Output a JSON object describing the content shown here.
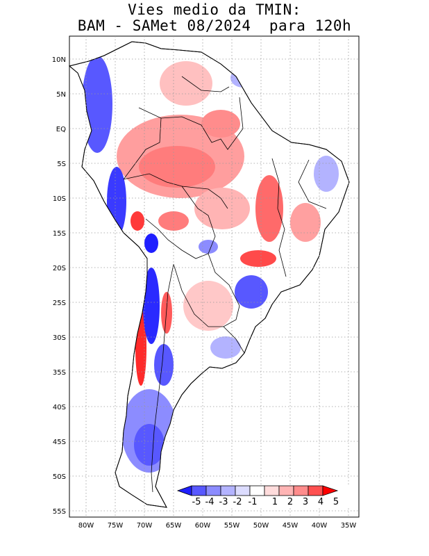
{
  "title_line1": "Vies medio da TMIN:",
  "title_line2": "BAM - SAMet 08/2024  para 120h",
  "lat_labels": [
    "10N",
    "5N",
    "EQ",
    "5S",
    "10S",
    "15S",
    "20S",
    "25S",
    "30S",
    "35S",
    "40S",
    "45S",
    "50S",
    "55S"
  ],
  "lon_labels": [
    "80W",
    "75W",
    "70W",
    "65W",
    "60W",
    "55W",
    "50W",
    "45W",
    "40W",
    "35W"
  ],
  "colorbar": {
    "labels": [
      "-5",
      "-4",
      "-3",
      "-2",
      "-1",
      "1",
      "2",
      "3",
      "4",
      "5"
    ],
    "colors": [
      "#1f1fff",
      "#5858ff",
      "#8c8cff",
      "#b3b3ff",
      "#dcdcff",
      "#ffffff",
      "#ffdcdc",
      "#ffb4b4",
      "#ff8c8c",
      "#ff5050",
      "#ff0000"
    ]
  },
  "colors": {
    "land": "#ffffff",
    "warm": "#ff8c8c",
    "warm_light": "#ffc0c0",
    "warm_strong": "#ff2020",
    "cold": "#5858ff",
    "cold_light": "#b3b3ff",
    "cold_strong": "#1f1fff"
  }
}
